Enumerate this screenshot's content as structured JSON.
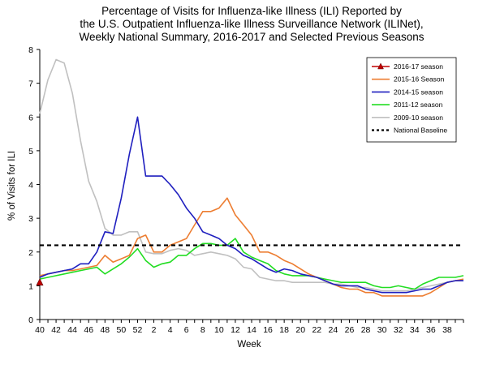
{
  "chart_data": {
    "type": "line",
    "title_lines": [
      "Percentage of Visits for Influenza-like Illness (ILI) Reported by",
      "the U.S. Outpatient Influenza-like Illness Surveillance Network (ILINet),",
      "Weekly National Summary, 2016-2017 and Selected Previous Seasons"
    ],
    "xlabel": "Week",
    "ylabel": "% of Visits for ILI",
    "ylim": [
      0,
      8
    ],
    "yticks": [
      0,
      1,
      2,
      3,
      4,
      5,
      6,
      7,
      8
    ],
    "x_tick_labels": [
      "40",
      "42",
      "44",
      "46",
      "48",
      "50",
      "52",
      "2",
      "4",
      "6",
      "8",
      "10",
      "12",
      "14",
      "16",
      "18",
      "20",
      "22",
      "24",
      "26",
      "28",
      "30",
      "32",
      "34",
      "36",
      "38"
    ],
    "baseline": {
      "name": "National Baseline",
      "value": 2.2,
      "color": "#000000"
    },
    "legend_position": "top-right",
    "series": [
      {
        "name": "2016-17 season",
        "color": "#c00000",
        "marker": "triangle",
        "values": [
          1.1
        ]
      },
      {
        "name": "2015-16 Season",
        "color": "#ed7d31",
        "values": [
          1.3,
          1.35,
          1.4,
          1.45,
          1.45,
          1.5,
          1.55,
          1.6,
          1.9,
          1.7,
          1.8,
          1.9,
          2.4,
          2.5,
          2.0,
          2.0,
          2.2,
          2.3,
          2.4,
          2.8,
          3.2,
          3.2,
          3.3,
          3.6,
          3.1,
          2.8,
          2.5,
          2.0,
          2.0,
          1.9,
          1.75,
          1.65,
          1.5,
          1.35,
          1.25,
          1.15,
          1.05,
          0.95,
          0.9,
          0.9,
          0.8,
          0.8,
          0.7,
          0.7,
          0.7,
          0.7,
          0.7,
          0.7,
          0.8,
          0.95,
          1.1,
          1.15,
          1.2
        ]
      },
      {
        "name": "2014-15 season",
        "color": "#1f1fbf",
        "values": [
          1.25,
          1.35,
          1.4,
          1.45,
          1.5,
          1.65,
          1.65,
          2.0,
          2.6,
          2.55,
          3.6,
          4.9,
          6.0,
          4.25,
          4.25,
          4.25,
          4.0,
          3.7,
          3.3,
          3.0,
          2.6,
          2.5,
          2.4,
          2.2,
          2.1,
          1.9,
          1.8,
          1.65,
          1.5,
          1.4,
          1.5,
          1.45,
          1.35,
          1.3,
          1.25,
          1.15,
          1.05,
          1.0,
          1.0,
          1.0,
          0.9,
          0.85,
          0.8,
          0.8,
          0.8,
          0.8,
          0.85,
          0.9,
          0.9,
          1.0,
          1.1,
          1.15,
          1.15
        ]
      },
      {
        "name": "2011-12 season",
        "color": "#22dd22",
        "values": [
          1.2,
          1.25,
          1.3,
          1.35,
          1.4,
          1.45,
          1.5,
          1.55,
          1.35,
          1.5,
          1.65,
          1.85,
          2.1,
          1.75,
          1.55,
          1.65,
          1.7,
          1.9,
          1.9,
          2.1,
          2.25,
          2.25,
          2.2,
          2.2,
          2.4,
          2.0,
          1.85,
          1.75,
          1.65,
          1.45,
          1.35,
          1.3,
          1.3,
          1.3,
          1.25,
          1.2,
          1.15,
          1.1,
          1.1,
          1.1,
          1.1,
          1.0,
          0.95,
          0.95,
          1.0,
          0.95,
          0.9,
          1.05,
          1.15,
          1.25,
          1.25,
          1.25,
          1.3
        ]
      },
      {
        "name": "2009-10 season",
        "color": "#c0c0c0",
        "values": [
          6.1,
          7.1,
          7.7,
          7.6,
          6.7,
          5.3,
          4.1,
          3.5,
          2.7,
          2.5,
          2.5,
          2.6,
          2.6,
          2.0,
          1.95,
          1.95,
          2.05,
          2.1,
          2.05,
          1.9,
          1.95,
          2.0,
          1.95,
          1.9,
          1.8,
          1.55,
          1.5,
          1.25,
          1.2,
          1.15,
          1.15,
          1.1,
          1.1,
          1.1,
          1.1,
          1.1,
          1.05,
          1.05,
          1.0,
          0.95,
          0.95,
          0.9,
          0.85,
          0.85,
          0.85,
          0.85,
          0.9,
          0.95,
          1.0,
          1.05,
          1.1,
          1.15,
          1.15
        ]
      }
    ]
  }
}
